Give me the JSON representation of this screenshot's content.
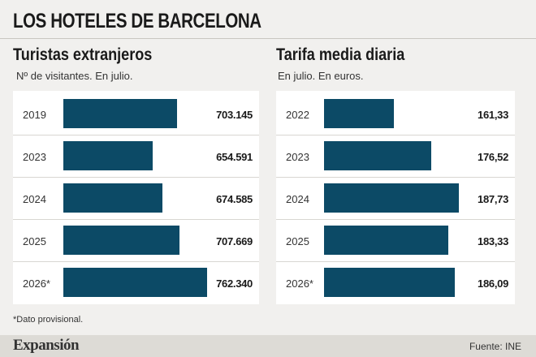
{
  "title": "LOS HOTELES DE BARCELONA",
  "footnote": "*Dato provisional.",
  "brand": "Expansión",
  "source": "Fuente: INE",
  "colors": {
    "bar": "#0c4a66",
    "panel": "#ffffff",
    "background": "#f1f0ee"
  },
  "chart_data": [
    {
      "type": "bar",
      "orientation": "horizontal",
      "title": "Turistas extranjeros",
      "subtitle": "Nº de visitantes. En julio.",
      "categories": [
        "2019",
        "2023",
        "2024",
        "2025",
        "2026*"
      ],
      "values": [
        703145,
        654591,
        674585,
        707669,
        762340
      ],
      "value_labels": [
        "703.145",
        "654.591",
        "674.585",
        "707.669",
        "762.340"
      ],
      "xlim": [
        480000,
        770000
      ]
    },
    {
      "type": "bar",
      "orientation": "horizontal",
      "title": "Tarifa media diaria",
      "subtitle": "En julio. En euros.",
      "categories": [
        "2022",
        "2023",
        "2024",
        "2025",
        "2026*"
      ],
      "values": [
        161.33,
        176.52,
        187.73,
        183.33,
        186.09
      ],
      "value_labels": [
        "161,33",
        "176,52",
        "187,73",
        "183,33",
        "186,09"
      ],
      "xlim": [
        133,
        190
      ]
    }
  ]
}
